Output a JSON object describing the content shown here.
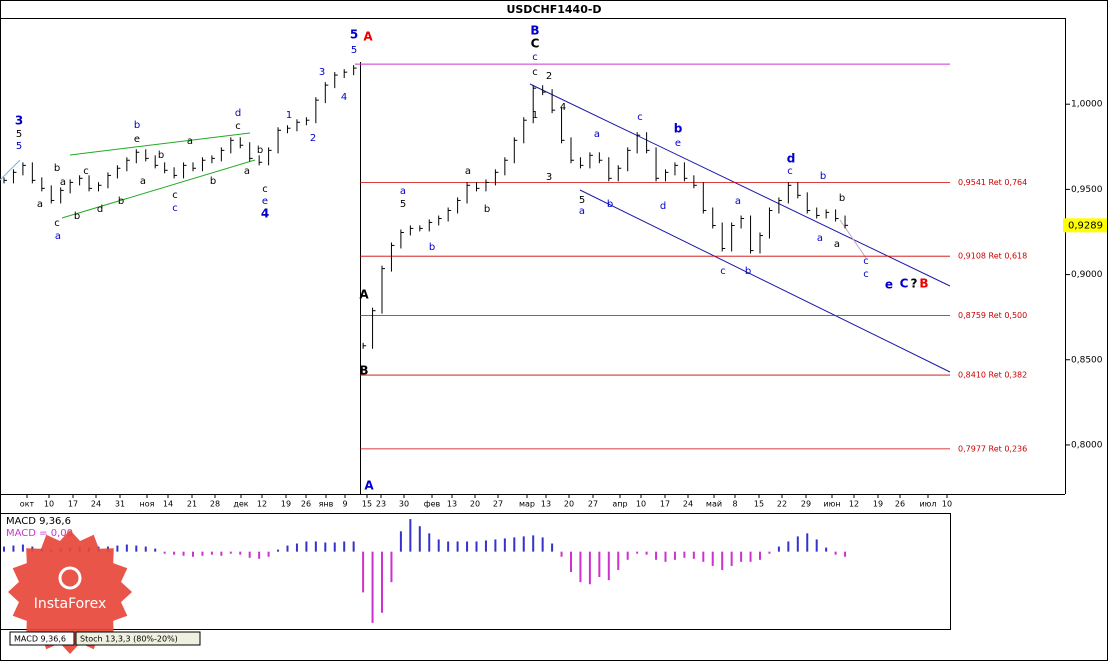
{
  "chart_data": {
    "type": "ohlc",
    "title": "USDCHF1440-D",
    "close": [
      0.9553,
      0.96,
      0.9641,
      0.9553,
      0.9506,
      0.9435,
      0.9494,
      0.9541,
      0.9565,
      0.9506,
      0.9524,
      0.9582,
      0.9624,
      0.9671,
      0.9718,
      0.9682,
      0.9641,
      0.9612,
      0.9582,
      0.9641,
      0.9624,
      0.9671,
      0.9682,
      0.9729,
      0.9788,
      0.9759,
      0.9682,
      0.9659,
      0.9729,
      0.9847,
      0.9859,
      0.9894,
      0.9906,
      1.0024,
      1.0112,
      1.0171,
      1.0188,
      1.0212,
      0.8582,
      0.8788,
      0.9035,
      0.9171,
      0.9247,
      0.9271,
      0.9271,
      0.9306,
      0.9329,
      0.9376,
      0.9435,
      0.9524,
      0.9506,
      0.9541,
      0.96,
      0.9671,
      0.9788,
      0.9906,
      1.0094,
      1.0071,
      0.9965,
      0.9788,
      0.9671,
      0.9641,
      0.97,
      0.9671,
      0.9565,
      0.9624,
      0.9729,
      0.9818,
      0.9729,
      0.9565,
      0.96,
      0.9641,
      0.9565,
      0.9524,
      0.9376,
      0.9288,
      0.9153,
      0.9288,
      0.9329,
      0.9141,
      0.9229,
      0.9376,
      0.9435,
      0.9524,
      0.9465,
      0.9376,
      0.9347,
      0.9365,
      0.9329,
      0.9289
    ],
    "bar_color": "#000000",
    "ylim": [
      0.7712,
      1.0506
    ],
    "yticks": [
      {
        "value": 0.8,
        "label": "0,8000"
      },
      {
        "value": 0.85,
        "label": "0,8500"
      },
      {
        "value": 0.9,
        "label": "0,9000"
      },
      {
        "value": 0.95,
        "label": "0,9500"
      },
      {
        "value": 1.0,
        "label": "1,0000"
      }
    ],
    "current_price": {
      "value": 0.9289,
      "label": "0,9289",
      "color": "#ffff00"
    },
    "top_line": {
      "value": 1.0235,
      "color": "#cc33cc"
    },
    "levels": [
      {
        "value": 0.9541,
        "label": "0,9541 Ret 0,764"
      },
      {
        "value": 0.9108,
        "label": "0,9108 Ret 0,618"
      },
      {
        "value": 0.8759,
        "label": "0,8759 Ret 0,500"
      },
      {
        "value": 0.841,
        "label": "0,8410 Ret 0,382"
      },
      {
        "value": 0.7977,
        "label": "0,7977 Ret 0,236"
      }
    ],
    "level_color": "#cc0000",
    "x_labels": [
      "окт",
      "10",
      "17",
      "24",
      "31",
      "ноя",
      "14",
      "21",
      "28",
      "дек",
      "12",
      "19",
      "26",
      "янв",
      "9",
      "15",
      "23",
      "30",
      "фев",
      "13",
      "20",
      "27",
      "мар",
      "13",
      "20",
      "27",
      "апр",
      "10",
      "17",
      "24",
      "май",
      "8",
      "15",
      "22",
      "29",
      "июн",
      "12",
      "19",
      "26",
      "июл",
      "10"
    ],
    "annotations": [
      {
        "text": "3",
        "color": "#0000cc"
      },
      {
        "text": "5",
        "color": "#000000"
      },
      {
        "text": "5",
        "color": "#0000cc"
      },
      {
        "text": "b",
        "color": "#000000"
      },
      {
        "text": "a",
        "color": "#000000"
      },
      {
        "text": "a",
        "color": "#000000"
      },
      {
        "text": "c",
        "color": "#000000"
      },
      {
        "text": "a",
        "color": "#0000cc"
      },
      {
        "text": "b",
        "color": "#000000"
      },
      {
        "text": "c",
        "color": "#000000"
      },
      {
        "text": "d",
        "color": "#000000"
      },
      {
        "text": "b",
        "color": "#000000"
      },
      {
        "text": "b",
        "color": "#0000cc"
      },
      {
        "text": "e",
        "color": "#000000"
      },
      {
        "text": "a",
        "color": "#000000"
      },
      {
        "text": "a",
        "color": "#000000"
      },
      {
        "text": "c",
        "color": "#000000"
      },
      {
        "text": "c",
        "color": "#0000cc"
      },
      {
        "text": "b",
        "color": "#000000"
      },
      {
        "text": "b",
        "color": "#000000"
      },
      {
        "text": "d",
        "color": "#0000cc"
      },
      {
        "text": "c",
        "color": "#000000"
      },
      {
        "text": "b",
        "color": "#000000"
      },
      {
        "text": "a",
        "color": "#000000"
      },
      {
        "text": "c",
        "color": "#000000"
      },
      {
        "text": "e",
        "color": "#0000cc"
      },
      {
        "text": "4",
        "color": "#0000cc"
      },
      {
        "text": "1",
        "color": "#0000cc"
      },
      {
        "text": "2",
        "color": "#0000cc"
      },
      {
        "text": "3",
        "color": "#0000cc"
      },
      {
        "text": "4",
        "color": "#0000cc"
      },
      {
        "text": "5",
        "color": "#0000cc"
      },
      {
        "text": "5",
        "color": "#0000cc"
      },
      {
        "text": "A",
        "color": "#ee0000"
      },
      {
        "text": "A",
        "color": "#000000"
      },
      {
        "text": "B",
        "color": "#000000"
      },
      {
        "text": "A",
        "color": "#0000cc"
      },
      {
        "text": "a",
        "color": "#0000cc"
      },
      {
        "text": "5",
        "color": "#000000"
      },
      {
        "text": "b",
        "color": "#0000cc"
      },
      {
        "text": "a",
        "color": "#000000"
      },
      {
        "text": "b",
        "color": "#000000"
      },
      {
        "text": "B",
        "color": "#0000cc"
      },
      {
        "text": "C",
        "color": "#000000"
      },
      {
        "text": "c",
        "color": "#0000cc"
      },
      {
        "text": "c",
        "color": "#000000"
      },
      {
        "text": "2",
        "color": "#000000"
      },
      {
        "text": "4",
        "color": "#000000"
      },
      {
        "text": "1",
        "color": "#000000"
      },
      {
        "text": "3",
        "color": "#000000"
      },
      {
        "text": "5",
        "color": "#000000"
      },
      {
        "text": "a",
        "color": "#0000cc"
      },
      {
        "text": "b",
        "color": "#0000cc"
      },
      {
        "text": "a",
        "color": "#0000cc"
      },
      {
        "text": "c",
        "color": "#0000cc"
      },
      {
        "text": "b",
        "color": "#0000cc"
      },
      {
        "text": "e",
        "color": "#0000cc"
      },
      {
        "text": "d",
        "color": "#0000cc"
      },
      {
        "text": "a",
        "color": "#0000cc"
      },
      {
        "text": "c",
        "color": "#0000cc"
      },
      {
        "text": "b",
        "color": "#0000cc"
      },
      {
        "text": "d",
        "color": "#0000cc"
      },
      {
        "text": "c",
        "color": "#0000cc"
      },
      {
        "text": "b",
        "color": "#0000cc"
      },
      {
        "text": "b",
        "color": "#000000"
      },
      {
        "text": "a",
        "color": "#0000cc"
      },
      {
        "text": "a",
        "color": "#000000"
      },
      {
        "text": "c",
        "color": "#0000cc"
      },
      {
        "text": "c",
        "color": "#0000cc"
      },
      {
        "text": "e",
        "color": "#0000cc"
      },
      {
        "text": "C",
        "color": "#0000cc"
      },
      {
        "text": "?",
        "color": "#000000"
      },
      {
        "text": "B",
        "color": "#ee0000"
      }
    ],
    "macd": {
      "label": "MACD 9,36,6",
      "value_label": "MACD = 0,00",
      "value_color": "#cc33cc",
      "positive_color": "#3333cc",
      "negative_color": "#cc33cc",
      "ylim": [
        -0.0152,
        0.0074
      ],
      "values": [
        0.001,
        0.0012,
        0.0014,
        0.001,
        0.0006,
        0.0004,
        0.0006,
        0.0008,
        0.001,
        0.0008,
        0.001,
        0.001,
        0.0012,
        0.0014,
        0.0012,
        0.001,
        0.0006,
        -0.0004,
        -0.0006,
        -0.0008,
        -0.001,
        -0.0008,
        -0.0006,
        -0.0008,
        -0.0004,
        -0.0006,
        -0.0012,
        -0.0014,
        -0.001,
        0.0004,
        0.0012,
        0.0016,
        0.002,
        0.002,
        0.0018,
        0.0018,
        0.002,
        0.002,
        -0.008,
        -0.014,
        -0.012,
        -0.006,
        0.004,
        0.0064,
        0.005,
        0.0036,
        0.0024,
        0.002,
        0.002,
        0.002,
        0.002,
        0.0022,
        0.0024,
        0.0026,
        0.0028,
        0.003,
        0.0032,
        0.0028,
        0.0016,
        -0.001,
        -0.004,
        -0.006,
        -0.0064,
        -0.005,
        -0.0056,
        -0.0036,
        -0.0016,
        -0.0004,
        -0.0006,
        -0.0016,
        -0.002,
        -0.0016,
        -0.0012,
        -0.0014,
        -0.002,
        -0.0028,
        -0.0036,
        -0.0028,
        -0.002,
        -0.002,
        -0.0016,
        -0.0004,
        0.001,
        0.002,
        0.003,
        0.0036,
        0.0024,
        0.0008,
        -0.0006,
        -0.001
      ]
    },
    "tabs": [
      "MACD 9,36,6",
      "Stoch 13,3,3 (80%-20%)"
    ],
    "logo": "InstaForex"
  }
}
